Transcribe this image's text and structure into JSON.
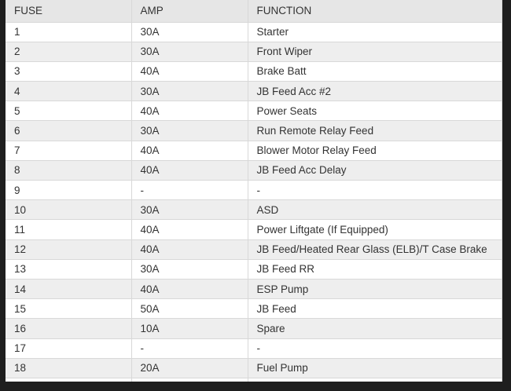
{
  "headers": [
    "FUSE",
    "AMP",
    "FUNCTION"
  ],
  "rows": [
    [
      "1",
      "30A",
      "Starter"
    ],
    [
      "2",
      "30A",
      "Front Wiper"
    ],
    [
      "3",
      "40A",
      "Brake Batt"
    ],
    [
      "4",
      "30A",
      "JB Feed Acc #2"
    ],
    [
      "5",
      "40A",
      "Power Seats"
    ],
    [
      "6",
      "30A",
      "Run Remote Relay Feed"
    ],
    [
      "7",
      "40A",
      "Blower Motor Relay Feed"
    ],
    [
      "8",
      "40A",
      "JB Feed Acc Delay"
    ],
    [
      "9",
      "-",
      "-"
    ],
    [
      "10",
      "30A",
      "ASD"
    ],
    [
      "11",
      "40A",
      "Power Liftgate (If Equipped)"
    ],
    [
      "12",
      "40A",
      "JB Feed/Heated Rear Glass (ELB)/T Case Brake"
    ],
    [
      "13",
      "30A",
      "JB Feed RR"
    ],
    [
      "14",
      "40A",
      "ESP Pump"
    ],
    [
      "15",
      "50A",
      "JB Feed"
    ],
    [
      "16",
      "10A",
      "Spare"
    ],
    [
      "17",
      "-",
      "-"
    ],
    [
      "18",
      "20A",
      "Fuel Pump"
    ]
  ]
}
